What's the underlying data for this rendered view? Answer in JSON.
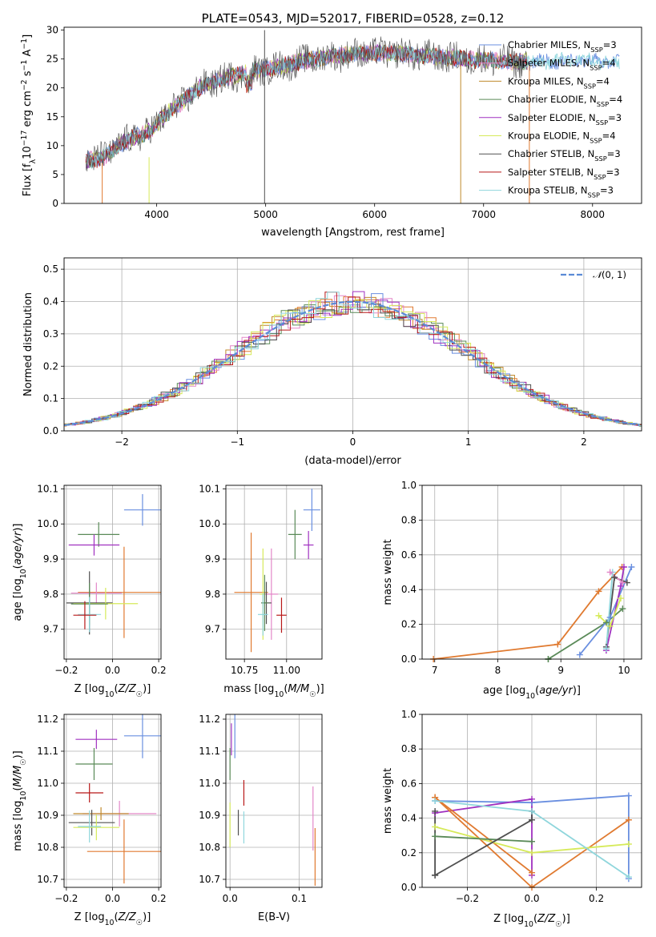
{
  "colors": {
    "chabrier_miles": "#6a8fe0",
    "salpeter_miles": "#e387c8",
    "kroupa_miles": "#c08a2c",
    "chabrier_elodie": "#5a8a58",
    "salpeter_elodie": "#a030c0",
    "kroupa_elodie": "#d6ea5a",
    "chabrier_stelib": "#505050",
    "salpeter_stelib": "#b81818",
    "kroupa_stelib": "#8fd6dc",
    "orange": "#e07a30",
    "normal_curve": "#5b8bd6"
  },
  "chart_data": [
    {
      "id": "spectrum",
      "type": "line",
      "title": "PLATE=0543, MJD=52017, FIBERID=0528, z=0.12",
      "xlabel": "wavelength [Angstrom, rest frame]",
      "ylabel": "Flux [f_λ 10^-17 erg cm^-2 s^-1 A^-1]",
      "xlim": [
        3150,
        8450
      ],
      "ylim": [
        0,
        30.5
      ],
      "xticks": [
        4000,
        5000,
        6000,
        7000,
        8000
      ],
      "yticks": [
        0,
        5,
        10,
        15,
        20,
        25,
        30
      ],
      "legend_position": "right",
      "legend": [
        {
          "label": "Chabrier MILES, N_SSP=3",
          "key": "chabrier_miles"
        },
        {
          "label": "Salpeter MILES, N_SSP=4",
          "key": "salpeter_miles"
        },
        {
          "label": "Kroupa MILES, N_SSP=4",
          "key": "kroupa_miles"
        },
        {
          "label": "Chabrier ELODIE, N_SSP=4",
          "key": "chabrier_elodie"
        },
        {
          "label": "Salpeter ELODIE, N_SSP=3",
          "key": "salpeter_elodie"
        },
        {
          "label": "Kroupa ELODIE, N_SSP=4",
          "key": "kroupa_elodie"
        },
        {
          "label": "Chabrier STELIB, N_SSP=3",
          "key": "chabrier_stelib"
        },
        {
          "label": "Salpeter STELIB, N_SSP=3",
          "key": "salpeter_stelib"
        },
        {
          "label": "Kroupa STELIB, N_SSP=3",
          "key": "kroupa_stelib"
        }
      ],
      "continuum": [
        [
          3350,
          7.5
        ],
        [
          3500,
          7.8
        ],
        [
          3650,
          10
        ],
        [
          3800,
          11.5
        ],
        [
          3950,
          12.5
        ],
        [
          4050,
          15
        ],
        [
          4200,
          17
        ],
        [
          4350,
          19.5
        ],
        [
          4500,
          21
        ],
        [
          4700,
          22
        ],
        [
          4900,
          23
        ],
        [
          5100,
          23.5
        ],
        [
          5300,
          24.5
        ],
        [
          5600,
          25.5
        ],
        [
          5900,
          26
        ],
        [
          6200,
          26
        ],
        [
          6500,
          25.5
        ],
        [
          6800,
          25
        ],
        [
          7000,
          24.8
        ],
        [
          7300,
          24.5
        ],
        [
          7600,
          24.6
        ],
        [
          7900,
          24.8
        ],
        [
          8200,
          24.5
        ]
      ]
    },
    {
      "id": "residuals",
      "type": "step",
      "xlabel": "(data-model)/error",
      "ylabel": "Normed distribution",
      "xlim": [
        -2.5,
        2.5
      ],
      "ylim": [
        0,
        0.535
      ],
      "xticks": [
        -2,
        -1,
        0,
        1,
        2
      ],
      "yticks": [
        0.0,
        0.1,
        0.2,
        0.3,
        0.4,
        0.5
      ],
      "grid": true,
      "legend_position": "top-right",
      "legend_label": "N(0,1)"
    },
    {
      "id": "age_vs_z",
      "type": "errorbar",
      "xlabel": "Z [log10(Z/Z☉)]",
      "ylabel": "age [log10(age/yr)]",
      "xlim": [
        -0.21,
        0.21
      ],
      "ylim": [
        9.615,
        10.11
      ],
      "xticks": [
        -0.2,
        0.0,
        0.2
      ],
      "yticks": [
        9.7,
        9.8,
        9.9,
        10.0,
        10.1
      ],
      "grid": true,
      "points": [
        {
          "key": "chabrier_miles",
          "x": 0.13,
          "y": 10.04,
          "xerr": 0.08,
          "yerr": 0.045
        },
        {
          "key": "chabrier_elodie",
          "x": -0.06,
          "y": 9.97,
          "xerr": 0.09,
          "yerr": 0.035
        },
        {
          "key": "salpeter_elodie",
          "x": -0.08,
          "y": 9.94,
          "xerr": 0.11,
          "yerr": 0.03
        },
        {
          "key": "orange",
          "x": 0.05,
          "y": 9.805,
          "xerr": 0.2,
          "yerr": 0.13
        },
        {
          "key": "salpeter_miles",
          "x": -0.07,
          "y": 9.803,
          "xerr": 0.11,
          "yerr": 0.03
        },
        {
          "key": "chabrier_stelib",
          "x": -0.1,
          "y": 9.775,
          "xerr": 0.1,
          "yerr": 0.09
        },
        {
          "key": "kroupa_elodie",
          "x": -0.03,
          "y": 9.773,
          "xerr": 0.14,
          "yerr": 0.045
        },
        {
          "key": "chabrier_elodie",
          "x": -0.1,
          "y": 9.772,
          "xerr": 0.08,
          "yerr": 0.06
        },
        {
          "key": "kroupa_stelib",
          "x": -0.1,
          "y": 9.742,
          "xerr": 0.05,
          "yerr": 0.05
        },
        {
          "key": "salpeter_stelib",
          "x": -0.12,
          "y": 9.74,
          "xerr": 0.05,
          "yerr": 0.04
        }
      ]
    },
    {
      "id": "age_vs_mass",
      "type": "errorbar",
      "xlabel": "mass [log10(M/M☉)]",
      "ylabel": "",
      "xlim": [
        10.64,
        11.21
      ],
      "ylim": [
        9.615,
        10.11
      ],
      "xticks": [
        10.75,
        11.0
      ],
      "yticks": [
        9.7,
        9.8,
        9.9,
        10.0,
        10.1
      ],
      "grid": true,
      "points": [
        {
          "key": "chabrier_miles",
          "x": 11.15,
          "y": 10.04,
          "xerr": 0.05,
          "yerr": 0.06
        },
        {
          "key": "chabrier_elodie",
          "x": 11.05,
          "y": 9.97,
          "xerr": 0.04,
          "yerr": 0.07
        },
        {
          "key": "salpeter_elodie",
          "x": 11.13,
          "y": 9.94,
          "xerr": 0.03,
          "yerr": 0.04
        },
        {
          "key": "orange",
          "x": 10.79,
          "y": 9.805,
          "xerr": 0.1,
          "yerr": 0.17
        },
        {
          "key": "kroupa_elodie",
          "x": 10.86,
          "y": 9.8,
          "xerr": 0.02,
          "yerr": 0.13
        },
        {
          "key": "salpeter_miles",
          "x": 10.91,
          "y": 9.8,
          "xerr": 0.04,
          "yerr": 0.13
        },
        {
          "key": "chabrier_stelib",
          "x": 10.88,
          "y": 9.775,
          "xerr": 0.03,
          "yerr": 0.06
        },
        {
          "key": "chabrier_elodie",
          "x": 10.87,
          "y": 9.775,
          "xerr": 0.02,
          "yerr": 0.08
        },
        {
          "key": "kroupa_stelib",
          "x": 10.86,
          "y": 9.742,
          "xerr": 0.03,
          "yerr": 0.06
        },
        {
          "key": "salpeter_stelib",
          "x": 10.97,
          "y": 9.74,
          "xerr": 0.03,
          "yerr": 0.05
        }
      ]
    },
    {
      "id": "massweight_vs_age",
      "type": "line",
      "xlabel": "age [log10(age/yr)]",
      "ylabel": "mass weight",
      "xlim": [
        6.8,
        10.28
      ],
      "ylim": [
        0,
        1.0
      ],
      "xticks": [
        7,
        8,
        9,
        10
      ],
      "yticks": [
        0.0,
        0.2,
        0.4,
        0.6,
        0.8,
        1.0
      ],
      "grid": true,
      "series": [
        {
          "key": "orange",
          "x": [
            6.98,
            8.95,
            9.6,
            9.97
          ],
          "y": [
            0.0,
            0.085,
            0.39,
            0.53
          ]
        },
        {
          "key": "chabrier_elodie",
          "x": 8.8,
          "y": 0
        },
        {
          "key": "chabrier_elodie",
          "x": [
            8.8,
            9.72,
            9.98
          ],
          "y": [
            0.0,
            0.21,
            0.29
          ]
        },
        {
          "key": "chabrier_miles",
          "x": [
            9.3,
            9.78,
            10.12
          ],
          "y": [
            0.025,
            0.24,
            0.53
          ]
        },
        {
          "key": "salpeter_elodie",
          "x": [
            9.72,
            9.95,
            10.0
          ],
          "y": [
            0.05,
            0.42,
            0.53
          ]
        },
        {
          "key": "kroupa_elodie",
          "x": [
            9.6,
            9.78,
            9.95
          ],
          "y": [
            0.25,
            0.19,
            0.35
          ]
        },
        {
          "key": "chabrier_stelib",
          "x": [
            9.72,
            9.85,
            10.05
          ],
          "y": [
            0.07,
            0.47,
            0.44
          ]
        },
        {
          "key": "kroupa_stelib",
          "x": [
            9.72,
            9.82
          ],
          "y": [
            0.06,
            0.5
          ]
        },
        {
          "key": "salpeter_miles",
          "x": [
            9.78,
            9.98
          ],
          "y": [
            0.5,
            0.44
          ]
        }
      ]
    },
    {
      "id": "mass_vs_z",
      "type": "errorbar",
      "xlabel": "Z [log10(Z/Z☉)]",
      "ylabel": "mass [log10(M/M☉)]",
      "xlim": [
        -0.21,
        0.21
      ],
      "ylim": [
        10.675,
        11.215
      ],
      "xticks": [
        -0.2,
        0.0,
        0.2
      ],
      "yticks": [
        10.7,
        10.8,
        10.9,
        11.0,
        11.1,
        11.2
      ],
      "grid": true,
      "points": [
        {
          "key": "chabrier_miles",
          "x": 0.13,
          "y": 11.148,
          "xerr": 0.08,
          "yerr": 0.07
        },
        {
          "key": "salpeter_elodie",
          "x": -0.07,
          "y": 11.137,
          "xerr": 0.09,
          "yerr": 0.03
        },
        {
          "key": "chabrier_elodie",
          "x": -0.08,
          "y": 11.06,
          "xerr": 0.08,
          "yerr": 0.05
        },
        {
          "key": "salpeter_stelib",
          "x": -0.1,
          "y": 10.97,
          "xerr": 0.06,
          "yerr": 0.03
        },
        {
          "key": "salpeter_miles",
          "x": 0.03,
          "y": 10.905,
          "xerr": 0.16,
          "yerr": 0.04
        },
        {
          "key": "kroupa_miles",
          "x": -0.05,
          "y": 10.905,
          "xerr": 0.12,
          "yerr": 0.02
        },
        {
          "key": "chabrier_stelib",
          "x": -0.09,
          "y": 10.877,
          "xerr": 0.1,
          "yerr": 0.04
        },
        {
          "key": "kroupa_elodie",
          "x": -0.07,
          "y": 10.862,
          "xerr": 0.1,
          "yerr": 0.04
        },
        {
          "key": "kroupa_stelib",
          "x": -0.1,
          "y": 10.865,
          "xerr": 0.05,
          "yerr": 0.05
        },
        {
          "key": "orange",
          "x": 0.05,
          "y": 10.787,
          "xerr": 0.16,
          "yerr": 0.1
        }
      ]
    },
    {
      "id": "mass_vs_ebv",
      "type": "errorbar",
      "xlabel": "E(B-V)",
      "ylabel": "",
      "xlim": [
        -0.006,
        0.133
      ],
      "ylim": [
        10.675,
        11.215
      ],
      "xticks": [
        0.0,
        0.1
      ],
      "yticks": [
        10.7,
        10.8,
        10.9,
        11.0,
        11.1,
        11.2
      ],
      "grid": true,
      "points": [
        {
          "key": "chabrier_miles",
          "x": 0.007,
          "y": 11.148,
          "xerr": 0,
          "yerr": 0.07
        },
        {
          "key": "salpeter_elodie",
          "x": 0.002,
          "y": 11.137,
          "xerr": 0,
          "yerr": 0.05
        },
        {
          "key": "chabrier_elodie",
          "x": 0.0,
          "y": 11.06,
          "xerr": 0,
          "yerr": 0.05
        },
        {
          "key": "salpeter_stelib",
          "x": 0.02,
          "y": 10.97,
          "xerr": 0,
          "yerr": 0.04
        },
        {
          "key": "kroupa_elodie",
          "x": 0.0,
          "y": 10.87,
          "xerr": 0,
          "yerr": 0.07
        },
        {
          "key": "chabrier_stelib",
          "x": 0.012,
          "y": 10.877,
          "xerr": 0,
          "yerr": 0.04
        },
        {
          "key": "kroupa_stelib",
          "x": 0.02,
          "y": 10.862,
          "xerr": 0,
          "yerr": 0.05
        },
        {
          "key": "salpeter_miles",
          "x": 0.12,
          "y": 10.89,
          "xerr": 0,
          "yerr": 0.1
        },
        {
          "key": "orange",
          "x": 0.123,
          "y": 10.77,
          "xerr": 0,
          "yerr": 0.09
        }
      ]
    },
    {
      "id": "massweight_vs_z",
      "type": "line",
      "xlabel": "Z [log10(Z/Z☉)]",
      "ylabel": "mass weight",
      "xlim": [
        -0.34,
        0.34
      ],
      "ylim": [
        0,
        1.0
      ],
      "xticks": [
        -0.2,
        0.0,
        0.2
      ],
      "yticks": [
        0.0,
        0.2,
        0.4,
        0.6,
        0.8,
        1.0
      ],
      "grid": true,
      "series": [
        {
          "key": "chabrier_miles",
          "x": [
            -0.3,
            0.0,
            0.3,
            0.3
          ],
          "y": [
            0.5,
            0.49,
            0.53,
            0.05
          ]
        },
        {
          "key": "salpeter_elodie",
          "x": [
            -0.3,
            0.0,
            0.0
          ],
          "y": [
            0.43,
            0.51,
            0.07
          ]
        },
        {
          "key": "orange",
          "x": [
            -0.3,
            0.0,
            0.3
          ],
          "y": [
            0.52,
            0.0,
            0.39
          ]
        },
        {
          "key": "orange",
          "x": [
            -0.3,
            0.0
          ],
          "y": [
            0.52,
            0.085
          ]
        },
        {
          "key": "kroupa_elodie",
          "x": [
            -0.3,
            0.0,
            0.3
          ],
          "y": [
            0.35,
            0.2,
            0.25
          ]
        },
        {
          "key": "chabrier_elodie",
          "x": [
            -0.3,
            0.0
          ],
          "y": [
            0.295,
            0.265
          ]
        },
        {
          "key": "chabrier_stelib",
          "x": [
            -0.3,
            0.0,
            0.0
          ],
          "y": [
            0.07,
            0.39,
            0.44
          ]
        },
        {
          "key": "chabrier_stelib",
          "x": [
            -0.3,
            -0.3
          ],
          "y": [
            0.07,
            0.44
          ]
        },
        {
          "key": "kroupa_stelib",
          "x": [
            -0.3,
            0.0,
            0.3
          ],
          "y": [
            0.5,
            0.44,
            0.06
          ]
        }
      ]
    }
  ]
}
